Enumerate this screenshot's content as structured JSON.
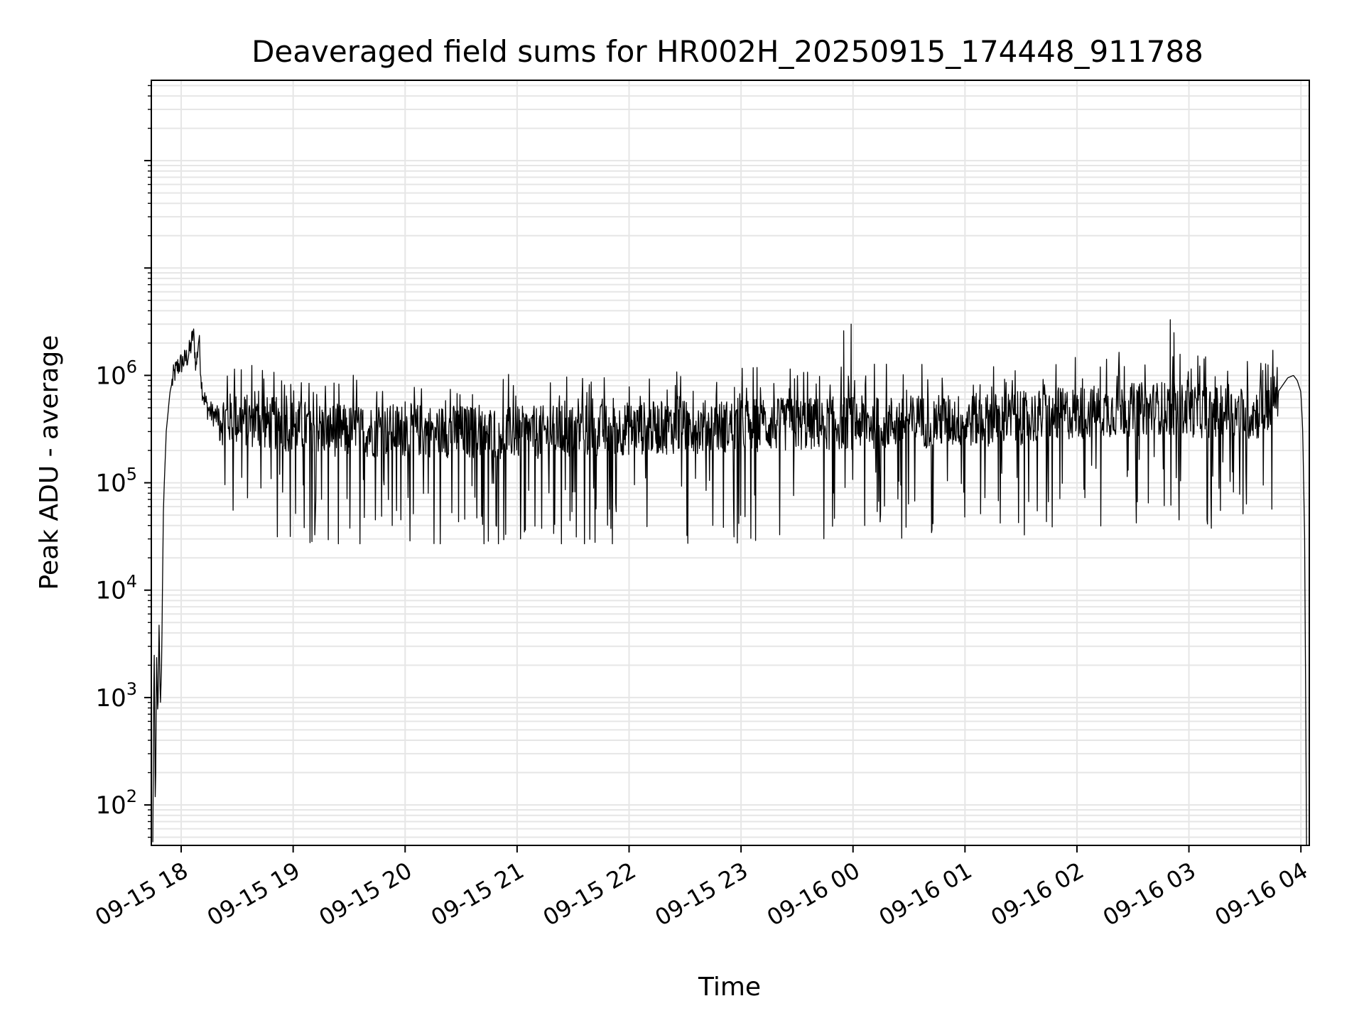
{
  "chart_data": {
    "type": "line",
    "title": "Deaveraged field sums for HR002H_20250915_174448_911788",
    "xlabel": "Time",
    "ylabel": "Peak ADU - average",
    "yscale": "log",
    "ylim": [
      42,
      560000000
    ],
    "xlim": [
      "2025-09-15 17:44:00",
      "2025-09-16 04:04:30"
    ],
    "grid": true,
    "line_color": "#000000",
    "grid_color": "#e6e6e6",
    "x_ticks": [
      {
        "date": "2025-09-15 18:00",
        "label": "09-15 18"
      },
      {
        "date": "2025-09-15 19:00",
        "label": "09-15 19"
      },
      {
        "date": "2025-09-15 20:00",
        "label": "09-15 20"
      },
      {
        "date": "2025-09-15 21:00",
        "label": "09-15 21"
      },
      {
        "date": "2025-09-15 22:00",
        "label": "09-15 22"
      },
      {
        "date": "2025-09-15 23:00",
        "label": "09-15 23"
      },
      {
        "date": "2025-09-16 00:00",
        "label": "09-16 00"
      },
      {
        "date": "2025-09-16 01:00",
        "label": "09-16 01"
      },
      {
        "date": "2025-09-16 02:00",
        "label": "09-16 02"
      },
      {
        "date": "2025-09-16 03:00",
        "label": "09-16 03"
      },
      {
        "date": "2025-09-16 04:00",
        "label": "09-16 04"
      }
    ],
    "y_ticks": [
      {
        "value": 100,
        "base": "10",
        "exp": "2"
      },
      {
        "value": 1000,
        "base": "10",
        "exp": "3"
      },
      {
        "value": 10000,
        "base": "10",
        "exp": "4"
      },
      {
        "value": 100000,
        "base": "10",
        "exp": "5"
      },
      {
        "value": 1000000,
        "base": "10",
        "exp": "6"
      }
    ],
    "series": [
      {
        "x": [
          "2025-09-15 17:44:48",
          "2025-09-15 17:45:30",
          "2025-09-15 17:46:10",
          "2025-09-15 17:46:50",
          "2025-09-15 17:47:30",
          "2025-09-15 17:48:10",
          "2025-09-15 17:48:50",
          "2025-09-15 17:49:30",
          "2025-09-15 17:50:30",
          "2025-09-15 17:52:00",
          "2025-09-15 17:54:00",
          "2025-09-15 17:56:00",
          "2025-09-15 17:58:00",
          "2025-09-15 18:00:00",
          "2025-09-15 18:02:00",
          "2025-09-15 18:03:30",
          "2025-09-15 18:05:00",
          "2025-09-15 18:06:30",
          "2025-09-15 18:08:00",
          "2025-09-15 18:09:30",
          "2025-09-15 18:11:00",
          "2025-09-15 18:12:30",
          "2025-09-15 18:14:00",
          "2025-09-15 18:16:00",
          "2025-09-15 18:18:00",
          "2025-09-15 18:20:00",
          "2025-09-15 18:35:00",
          "2025-09-15 19:00:00",
          "2025-09-15 19:15:00",
          "2025-09-15 19:30:00",
          "2025-09-15 20:00:00",
          "2025-09-15 20:30:00",
          "2025-09-15 21:00:00",
          "2025-09-15 21:30:00",
          "2025-09-15 22:00:00",
          "2025-09-15 22:30:00",
          "2025-09-15 23:00:00",
          "2025-09-15 23:30:00",
          "2025-09-15 23:55:00",
          "2025-09-16 00:30:00",
          "2025-09-16 01:00:00",
          "2025-09-16 01:30:00",
          "2025-09-16 02:00:00",
          "2025-09-16 02:30:00",
          "2025-09-16 02:45:00",
          "2025-09-16 03:00:00",
          "2025-09-16 03:30:00",
          "2025-09-16 03:40:00",
          "2025-09-16 03:45:00",
          "2025-09-16 03:50:00",
          "2025-09-16 03:53:00",
          "2025-09-16 03:56:00",
          "2025-09-16 03:58:00",
          "2025-09-16 04:00:00",
          "2025-09-16 04:01:00",
          "2025-09-16 04:02:00",
          "2025-09-16 04:02:30",
          "2025-09-16 04:03:00"
        ],
        "y": [
          45,
          3800,
          75,
          2500,
          600,
          5000,
          800,
          2000,
          60000,
          300000,
          700000,
          1000000,
          1200000,
          1300000,
          1400000,
          1500000,
          1800000,
          2500000,
          1200000,
          2300000,
          800000,
          600000,
          500000,
          450000,
          420000,
          400000,
          380000,
          340000,
          320000,
          300000,
          310000,
          300000,
          290000,
          300000,
          320000,
          330000,
          340000,
          350000,
          360000,
          370000,
          380000,
          400000,
          450000,
          480000,
          500000,
          470000,
          440000,
          450000,
          600000,
          800000,
          950000,
          1000000,
          900000,
          700000,
          300000,
          30000,
          1500,
          42
        ],
        "noise_band": {
          "typical_low": 150000,
          "typical_high": 700000,
          "dip_floor": 27000,
          "spike_peaks": [
            {
              "x": "2025-09-15 23:55:00",
              "y": 2600000
            },
            {
              "x": "2025-09-15 23:59:00",
              "y": 3000000
            },
            {
              "x": "2025-09-16 02:50:00",
              "y": 3300000
            },
            {
              "x": "2025-09-16 02:52:00",
              "y": 2500000
            }
          ]
        }
      }
    ]
  }
}
